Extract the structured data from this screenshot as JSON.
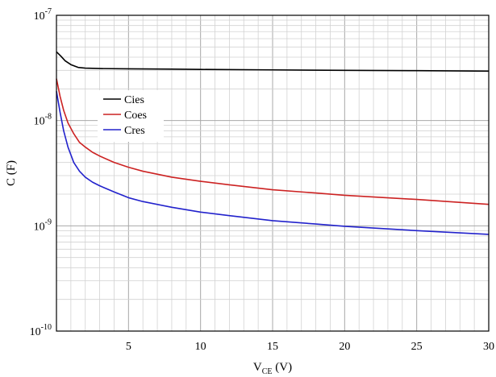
{
  "chart_data": {
    "type": "line",
    "title": "",
    "xlabel": {
      "main": "V",
      "sub": "CE",
      "suffix": " (V)"
    },
    "ylabel": "C (F)",
    "x_scale": "linear",
    "y_scale": "log",
    "xlim": [
      0,
      30
    ],
    "ylim": [
      1e-10,
      1e-07
    ],
    "x_ticks": [
      5,
      10,
      15,
      20,
      25,
      30
    ],
    "x_tick_labels": [
      "5",
      "10",
      "15",
      "20",
      "25",
      "30"
    ],
    "y_ticks": [
      {
        "value": 1e-07,
        "base": "10",
        "exp": "-7"
      },
      {
        "value": 1e-08,
        "base": "10",
        "exp": "-8"
      },
      {
        "value": 1e-09,
        "base": "10",
        "exp": "-9"
      },
      {
        "value": 1e-10,
        "base": "10",
        "exp": "-10"
      }
    ],
    "grid": true,
    "legend_position": "upper-left",
    "series": [
      {
        "name": "Cies",
        "color": "#000000",
        "x": [
          0,
          0.3,
          0.6,
          1.0,
          1.5,
          2,
          3,
          5,
          8,
          10,
          15,
          20,
          25,
          30
        ],
        "y": [
          4.5e-08,
          4.1e-08,
          3.7e-08,
          3.4e-08,
          3.2e-08,
          3.15e-08,
          3.12e-08,
          3.1e-08,
          3.08e-08,
          3.06e-08,
          3.03e-08,
          3e-08,
          2.98e-08,
          2.95e-08
        ]
      },
      {
        "name": "Coes",
        "color": "#cc2222",
        "x": [
          0,
          0.25,
          0.5,
          0.8,
          1.2,
          1.6,
          2,
          2.5,
          3,
          4,
          5,
          6,
          8,
          10,
          12,
          15,
          18,
          20,
          25,
          30
        ],
        "y": [
          2.5e-08,
          1.7e-08,
          1.25e-08,
          9.5e-09,
          7.5e-09,
          6.2e-09,
          5.6e-09,
          5e-09,
          4.6e-09,
          4e-09,
          3.6e-09,
          3.3e-09,
          2.9e-09,
          2.65e-09,
          2.45e-09,
          2.2e-09,
          2.05e-09,
          1.95e-09,
          1.78e-09,
          1.6e-09
        ]
      },
      {
        "name": "Cres",
        "color": "#2222cc",
        "x": [
          0,
          0.25,
          0.5,
          0.8,
          1.2,
          1.6,
          2,
          2.5,
          3,
          4,
          5,
          6,
          8,
          10,
          12,
          15,
          18,
          20,
          25,
          30
        ],
        "y": [
          1.9e-08,
          1.2e-08,
          8e-09,
          5.6e-09,
          4e-09,
          3.3e-09,
          2.9e-09,
          2.6e-09,
          2.4e-09,
          2.1e-09,
          1.85e-09,
          1.7e-09,
          1.5e-09,
          1.35e-09,
          1.25e-09,
          1.12e-09,
          1.04e-09,
          9.9e-10,
          9e-10,
          8.3e-10
        ]
      }
    ]
  }
}
